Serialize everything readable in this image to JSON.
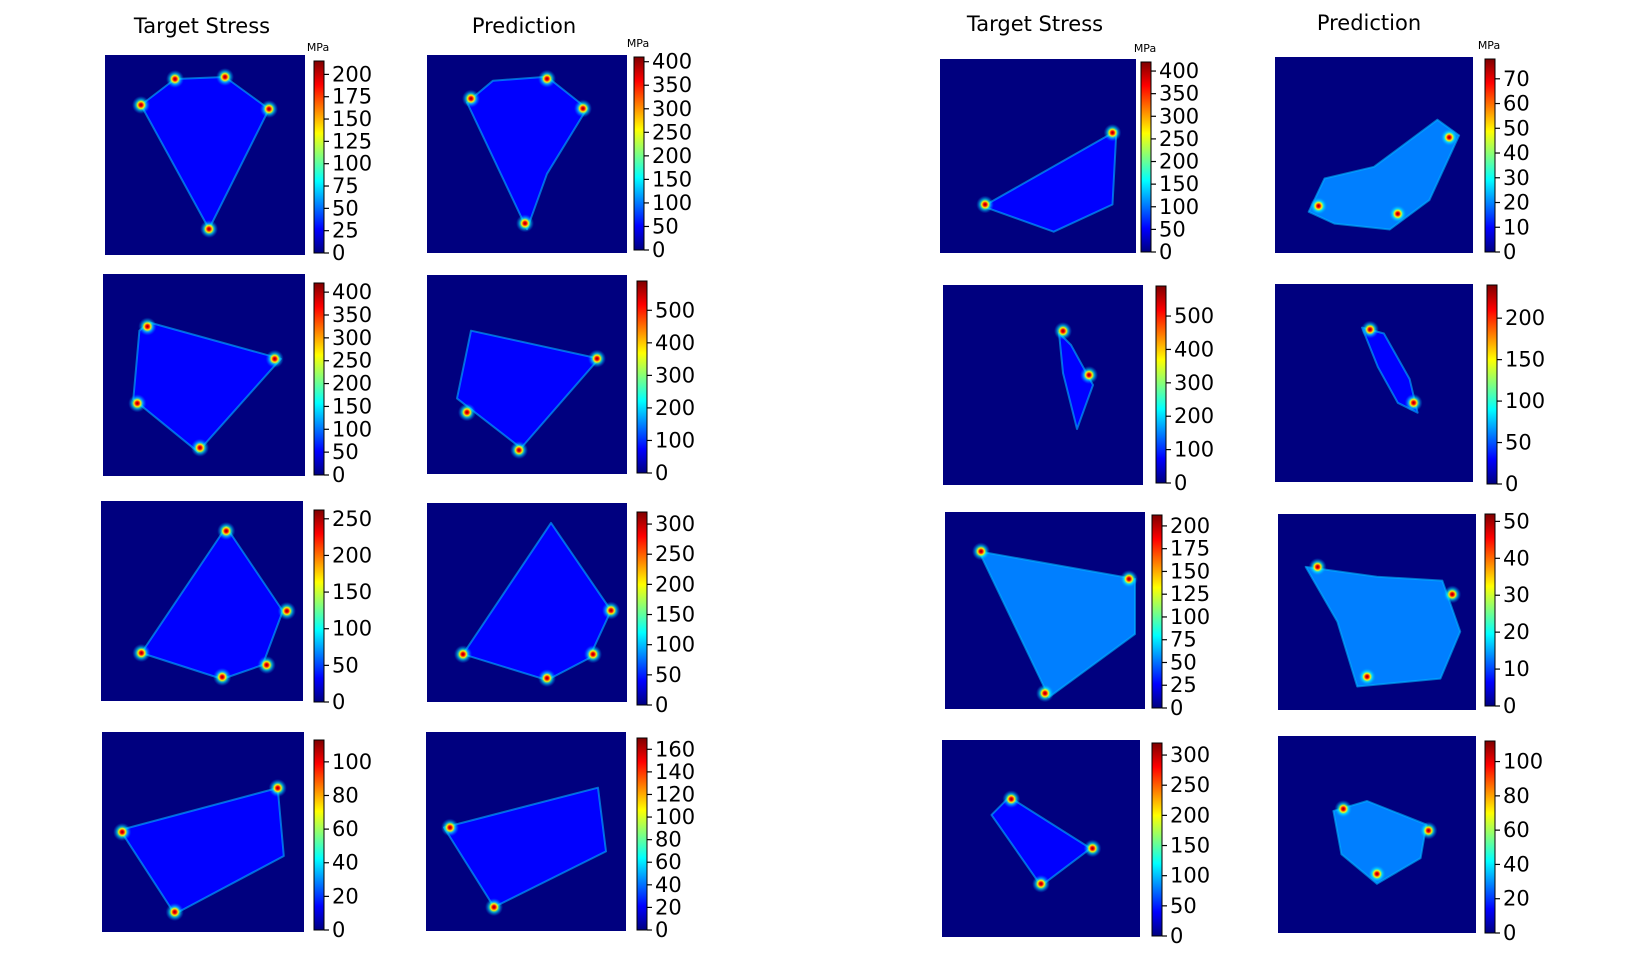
{
  "figure": {
    "column_titles": [
      "Target Stress",
      "Prediction",
      "Target Stress",
      "Prediction"
    ],
    "colormap": [
      "#00007f",
      "#0000ff",
      "#007fff",
      "#00ffff",
      "#7fff7f",
      "#ffff00",
      "#ff7f00",
      "#ff0000",
      "#7f0000"
    ],
    "background_color": "#00007f"
  },
  "chart_data": [
    {
      "type": "heatmap",
      "colorbar": {
        "unit": "MPa",
        "range": [
          0,
          215
        ],
        "ticks": [
          0,
          25,
          50,
          75,
          100,
          125,
          150,
          175,
          200
        ]
      },
      "hotspots": [
        [
          0.35,
          0.12
        ],
        [
          0.6,
          0.11
        ],
        [
          0.82,
          0.27
        ],
        [
          0.52,
          0.87
        ],
        [
          0.18,
          0.25
        ]
      ],
      "shape": [
        [
          0.18,
          0.25
        ],
        [
          0.35,
          0.12
        ],
        [
          0.6,
          0.11
        ],
        [
          0.82,
          0.27
        ],
        [
          0.52,
          0.87
        ]
      ],
      "base_value": 32
    },
    {
      "type": "heatmap",
      "colorbar": {
        "unit": "MPa",
        "range": [
          0,
          410
        ],
        "ticks": [
          0,
          50,
          100,
          150,
          200,
          250,
          300,
          350,
          400
        ]
      },
      "hotspots": [
        [
          0.6,
          0.12
        ],
        [
          0.78,
          0.27
        ],
        [
          0.22,
          0.22
        ],
        [
          0.49,
          0.85
        ]
      ],
      "shape": [
        [
          0.2,
          0.24
        ],
        [
          0.33,
          0.13
        ],
        [
          0.6,
          0.11
        ],
        [
          0.8,
          0.27
        ],
        [
          0.6,
          0.6
        ],
        [
          0.5,
          0.88
        ]
      ],
      "base_value": 60
    },
    {
      "type": "heatmap",
      "colorbar": {
        "unit": "MPa",
        "range": [
          0,
          420
        ],
        "ticks": [
          0,
          50,
          100,
          150,
          200,
          250,
          300,
          350,
          400
        ]
      },
      "hotspots": [
        [
          0.88,
          0.38
        ],
        [
          0.23,
          0.75
        ]
      ],
      "shape": [
        [
          0.22,
          0.76
        ],
        [
          0.9,
          0.37
        ],
        [
          0.88,
          0.75
        ],
        [
          0.58,
          0.89
        ]
      ],
      "base_value": 50
    },
    {
      "type": "heatmap",
      "colorbar": {
        "unit": "MPa",
        "range": [
          0,
          78
        ],
        "ticks": [
          0,
          10,
          20,
          30,
          40,
          50,
          60,
          70
        ]
      },
      "hotspots": [
        [
          0.88,
          0.41
        ],
        [
          0.22,
          0.76
        ],
        [
          0.62,
          0.8
        ]
      ],
      "shape": [
        [
          0.17,
          0.79
        ],
        [
          0.25,
          0.62
        ],
        [
          0.5,
          0.56
        ],
        [
          0.82,
          0.32
        ],
        [
          0.93,
          0.4
        ],
        [
          0.78,
          0.73
        ],
        [
          0.58,
          0.88
        ],
        [
          0.3,
          0.85
        ]
      ],
      "base_value": 20
    },
    {
      "type": "heatmap",
      "colorbar": {
        "unit": "",
        "range": [
          0,
          420
        ],
        "ticks": [
          0,
          50,
          100,
          150,
          200,
          250,
          300,
          350,
          400
        ]
      },
      "hotspots": [
        [
          0.22,
          0.26
        ],
        [
          0.85,
          0.42
        ],
        [
          0.48,
          0.86
        ],
        [
          0.17,
          0.64
        ]
      ],
      "shape": [
        [
          0.18,
          0.28
        ],
        [
          0.23,
          0.24
        ],
        [
          0.88,
          0.42
        ],
        [
          0.47,
          0.88
        ],
        [
          0.15,
          0.62
        ]
      ],
      "base_value": 40
    },
    {
      "type": "heatmap",
      "colorbar": {
        "unit": "",
        "range": [
          0,
          590
        ],
        "ticks": [
          0,
          100,
          200,
          300,
          400,
          500
        ]
      },
      "hotspots": [
        [
          0.85,
          0.42
        ],
        [
          0.2,
          0.69
        ],
        [
          0.46,
          0.88
        ]
      ],
      "shape": [
        [
          0.22,
          0.28
        ],
        [
          0.86,
          0.42
        ],
        [
          0.47,
          0.87
        ],
        [
          0.15,
          0.62
        ]
      ],
      "base_value": 60
    },
    {
      "type": "heatmap",
      "colorbar": {
        "unit": "",
        "range": [
          0,
          590
        ],
        "ticks": [
          0,
          100,
          200,
          300,
          400,
          500
        ]
      },
      "hotspots": [
        [
          0.6,
          0.23
        ],
        [
          0.73,
          0.45
        ]
      ],
      "shape": [
        [
          0.58,
          0.24
        ],
        [
          0.64,
          0.3
        ],
        [
          0.75,
          0.5
        ],
        [
          0.67,
          0.72
        ],
        [
          0.6,
          0.44
        ]
      ],
      "base_value": 70
    },
    {
      "type": "heatmap",
      "colorbar": {
        "unit": "",
        "range": [
          0,
          240
        ],
        "ticks": [
          0,
          50,
          100,
          150,
          200
        ]
      },
      "hotspots": [
        [
          0.48,
          0.23
        ],
        [
          0.7,
          0.6
        ]
      ],
      "shape": [
        [
          0.44,
          0.22
        ],
        [
          0.55,
          0.25
        ],
        [
          0.68,
          0.48
        ],
        [
          0.72,
          0.65
        ],
        [
          0.62,
          0.6
        ],
        [
          0.52,
          0.42
        ]
      ],
      "base_value": 40
    },
    {
      "type": "heatmap",
      "colorbar": {
        "unit": "",
        "range": [
          0,
          262
        ],
        "ticks": [
          0,
          50,
          100,
          150,
          200,
          250
        ]
      },
      "hotspots": [
        [
          0.62,
          0.15
        ],
        [
          0.92,
          0.55
        ],
        [
          0.2,
          0.76
        ],
        [
          0.6,
          0.88
        ],
        [
          0.82,
          0.82
        ]
      ],
      "shape": [
        [
          0.62,
          0.13
        ],
        [
          0.9,
          0.55
        ],
        [
          0.8,
          0.82
        ],
        [
          0.6,
          0.89
        ],
        [
          0.2,
          0.76
        ]
      ],
      "base_value": 40
    },
    {
      "type": "heatmap",
      "colorbar": {
        "unit": "",
        "range": [
          0,
          320
        ],
        "ticks": [
          0,
          50,
          100,
          150,
          200,
          250,
          300
        ]
      },
      "hotspots": [
        [
          0.92,
          0.54
        ],
        [
          0.83,
          0.76
        ],
        [
          0.6,
          0.88
        ],
        [
          0.18,
          0.76
        ]
      ],
      "shape": [
        [
          0.62,
          0.1
        ],
        [
          0.92,
          0.54
        ],
        [
          0.81,
          0.78
        ],
        [
          0.6,
          0.89
        ],
        [
          0.18,
          0.76
        ]
      ],
      "base_value": 60
    },
    {
      "type": "heatmap",
      "colorbar": {
        "unit": "",
        "range": [
          0,
          212
        ],
        "ticks": [
          0,
          25,
          50,
          75,
          100,
          125,
          150,
          175,
          200
        ]
      },
      "hotspots": [
        [
          0.18,
          0.2
        ],
        [
          0.92,
          0.34
        ],
        [
          0.5,
          0.92
        ]
      ],
      "shape": [
        [
          0.17,
          0.2
        ],
        [
          0.95,
          0.34
        ],
        [
          0.95,
          0.62
        ],
        [
          0.52,
          0.94
        ]
      ],
      "base_value": 40
    },
    {
      "type": "heatmap",
      "colorbar": {
        "unit": "",
        "range": [
          0,
          52
        ],
        "ticks": [
          0,
          10,
          20,
          30,
          40,
          50
        ]
      },
      "hotspots": [
        [
          0.88,
          0.41
        ],
        [
          0.45,
          0.83
        ],
        [
          0.2,
          0.27
        ]
      ],
      "shape": [
        [
          0.14,
          0.27
        ],
        [
          0.5,
          0.32
        ],
        [
          0.83,
          0.34
        ],
        [
          0.92,
          0.6
        ],
        [
          0.82,
          0.84
        ],
        [
          0.4,
          0.88
        ],
        [
          0.3,
          0.55
        ]
      ],
      "base_value": 12
    },
    {
      "type": "heatmap",
      "colorbar": {
        "unit": "",
        "range": [
          0,
          113
        ],
        "ticks": [
          0,
          20,
          40,
          60,
          80,
          100
        ]
      },
      "hotspots": [
        [
          0.1,
          0.5
        ],
        [
          0.36,
          0.9
        ],
        [
          0.87,
          0.28
        ]
      ],
      "shape": [
        [
          0.09,
          0.49
        ],
        [
          0.87,
          0.28
        ],
        [
          0.9,
          0.62
        ],
        [
          0.36,
          0.91
        ]
      ],
      "base_value": 18
    },
    {
      "type": "heatmap",
      "colorbar": {
        "unit": "",
        "range": [
          0,
          170
        ],
        "ticks": [
          0,
          20,
          40,
          60,
          80,
          100,
          120,
          140,
          160
        ]
      },
      "hotspots": [
        [
          0.12,
          0.48
        ],
        [
          0.34,
          0.88
        ]
      ],
      "shape": [
        [
          0.09,
          0.48
        ],
        [
          0.86,
          0.28
        ],
        [
          0.9,
          0.6
        ],
        [
          0.34,
          0.88
        ]
      ],
      "base_value": 25
    },
    {
      "type": "heatmap",
      "colorbar": {
        "unit": "",
        "range": [
          0,
          320
        ],
        "ticks": [
          0,
          50,
          100,
          150,
          200,
          250,
          300
        ]
      },
      "hotspots": [
        [
          0.35,
          0.3
        ],
        [
          0.76,
          0.55
        ],
        [
          0.5,
          0.73
        ]
      ],
      "shape": [
        [
          0.25,
          0.38
        ],
        [
          0.34,
          0.29
        ],
        [
          0.75,
          0.55
        ],
        [
          0.5,
          0.74
        ]
      ],
      "base_value": 45
    },
    {
      "type": "heatmap",
      "colorbar": {
        "unit": "",
        "range": [
          0,
          112
        ],
        "ticks": [
          0,
          20,
          40,
          60,
          80,
          100
        ]
      },
      "hotspots": [
        [
          0.33,
          0.37
        ],
        [
          0.76,
          0.48
        ],
        [
          0.5,
          0.7
        ]
      ],
      "shape": [
        [
          0.28,
          0.38
        ],
        [
          0.45,
          0.33
        ],
        [
          0.75,
          0.45
        ],
        [
          0.72,
          0.62
        ],
        [
          0.5,
          0.75
        ],
        [
          0.32,
          0.6
        ]
      ],
      "base_value": 30
    }
  ]
}
